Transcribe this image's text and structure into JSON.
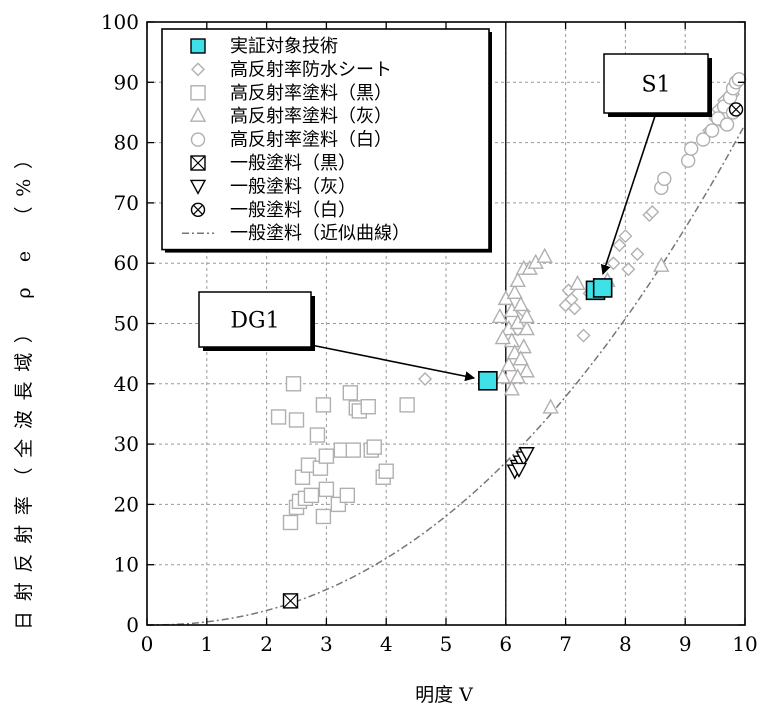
{
  "chart_data": {
    "type": "scatter",
    "xlabel": "明度 V",
    "ylabel": "日射反射率（全波長域） ρ e （%）",
    "xlim": [
      0,
      10
    ],
    "ylim": [
      0,
      100
    ],
    "x_ticks": [
      "0",
      "1",
      "2",
      "3",
      "4",
      "5",
      "6",
      "7",
      "8",
      "9",
      "10"
    ],
    "y_ticks": [
      "0",
      "10",
      "20",
      "30",
      "40",
      "50",
      "60",
      "70",
      "80",
      "90",
      "100"
    ],
    "grid": true,
    "legend_position": "top-left",
    "reference_line_x": 6,
    "series": [
      {
        "name": "実証対象技術",
        "marker": "square-filled",
        "color": "#40e0e8",
        "points": [
          [
            5.7,
            40.5
          ],
          [
            7.5,
            55.5
          ],
          [
            7.62,
            55.9
          ]
        ]
      },
      {
        "name": "高反射率防水シート",
        "marker": "diamond",
        "color": "#b0b0b0",
        "points": [
          [
            4.65,
            40.8
          ],
          [
            6.2,
            49
          ],
          [
            6.3,
            52
          ],
          [
            7.0,
            53
          ],
          [
            7.05,
            55.5
          ],
          [
            7.1,
            54
          ],
          [
            7.15,
            52.5
          ],
          [
            7.3,
            48
          ],
          [
            7.4,
            55
          ],
          [
            7.8,
            60
          ],
          [
            7.9,
            63
          ],
          [
            8.0,
            64.5
          ],
          [
            8.05,
            59
          ],
          [
            8.2,
            61.5
          ],
          [
            8.4,
            68
          ],
          [
            8.45,
            68.5
          ],
          [
            9.4,
            82
          ],
          [
            9.5,
            84
          ],
          [
            9.55,
            85.5
          ],
          [
            9.6,
            83.5
          ],
          [
            9.65,
            87
          ],
          [
            9.7,
            86
          ],
          [
            9.8,
            88
          ]
        ]
      },
      {
        "name": "高反射率塗料（黒）",
        "marker": "square",
        "color": "#b0b0b0",
        "points": [
          [
            2.2,
            34.5
          ],
          [
            2.45,
            40
          ],
          [
            2.5,
            34
          ],
          [
            2.4,
            17
          ],
          [
            2.5,
            19.5
          ],
          [
            2.55,
            20.5
          ],
          [
            2.6,
            24.5
          ],
          [
            2.65,
            21
          ],
          [
            2.7,
            26.5
          ],
          [
            2.75,
            21.5
          ],
          [
            2.85,
            31.5
          ],
          [
            2.9,
            26
          ],
          [
            2.95,
            18
          ],
          [
            3.0,
            28
          ],
          [
            3.0,
            22.5
          ],
          [
            2.95,
            36.5
          ],
          [
            3.2,
            20
          ],
          [
            3.25,
            29
          ],
          [
            3.35,
            21.5
          ],
          [
            3.4,
            38.5
          ],
          [
            3.45,
            29
          ],
          [
            3.5,
            36
          ],
          [
            3.55,
            35.5
          ],
          [
            3.7,
            36.2
          ],
          [
            3.75,
            29
          ],
          [
            3.8,
            29.5
          ],
          [
            3.95,
            24.5
          ],
          [
            4.0,
            25.5
          ],
          [
            4.35,
            36.5
          ]
        ]
      },
      {
        "name": "高反射率塗料（灰）",
        "marker": "triangle",
        "color": "#b0b0b0",
        "points": [
          [
            5.9,
            51
          ],
          [
            6.0,
            54
          ],
          [
            6.05,
            49
          ],
          [
            6.1,
            47
          ],
          [
            6.1,
            52
          ],
          [
            6.15,
            55
          ],
          [
            6.2,
            50
          ],
          [
            6.2,
            57
          ],
          [
            6.25,
            53
          ],
          [
            6.3,
            46
          ],
          [
            6.3,
            59
          ],
          [
            6.35,
            49
          ],
          [
            6.35,
            51
          ],
          [
            6.4,
            59
          ],
          [
            6.5,
            60
          ],
          [
            6.65,
            61
          ],
          [
            6.05,
            43
          ],
          [
            6.15,
            45
          ],
          [
            6.25,
            44
          ],
          [
            6.35,
            42
          ],
          [
            6.1,
            39
          ],
          [
            6.2,
            41
          ],
          [
            5.95,
            47.5
          ],
          [
            6.75,
            36
          ],
          [
            8.6,
            59.5
          ],
          [
            7.2,
            56.5
          ],
          [
            7.7,
            57
          ],
          [
            5.95,
            41
          ]
        ]
      },
      {
        "name": "高反射率塗料（白）",
        "marker": "circle",
        "color": "#b0b0b0",
        "points": [
          [
            8.6,
            72.5
          ],
          [
            8.65,
            74
          ],
          [
            9.05,
            77
          ],
          [
            9.1,
            79
          ],
          [
            9.3,
            80.5
          ],
          [
            9.45,
            82
          ],
          [
            9.55,
            84
          ],
          [
            9.65,
            86
          ],
          [
            9.75,
            87.5
          ],
          [
            9.8,
            89
          ],
          [
            9.85,
            90
          ],
          [
            9.9,
            90.5
          ],
          [
            9.7,
            83
          ],
          [
            9.8,
            85
          ]
        ]
      },
      {
        "name": "一般塗料（黒）",
        "marker": "square-cross",
        "color": "#000000",
        "points": [
          [
            2.4,
            4
          ]
        ]
      },
      {
        "name": "一般塗料（灰）",
        "marker": "triangle-down",
        "color": "#000000",
        "points": [
          [
            6.15,
            25.5
          ],
          [
            6.2,
            26.3
          ],
          [
            6.25,
            27
          ],
          [
            6.3,
            27.7
          ],
          [
            6.35,
            28.4
          ],
          [
            6.22,
            25.8
          ]
        ]
      },
      {
        "name": "一般塗料（白）",
        "marker": "circle-cross",
        "color": "#000000",
        "points": [
          [
            9.85,
            85.5
          ]
        ]
      },
      {
        "name": "一般塗料（近似曲線）",
        "marker": "dashdot-line",
        "color": "#777777",
        "curve_exponent": 2.2,
        "curve_points": [
          [
            0,
            0
          ],
          [
            1,
            0.4
          ],
          [
            2,
            2.5
          ],
          [
            3,
            5.5
          ],
          [
            4,
            10.5
          ],
          [
            5,
            18.5
          ],
          [
            6,
            29
          ],
          [
            7,
            42
          ],
          [
            8,
            57
          ],
          [
            9,
            70.5
          ],
          [
            10,
            83
          ]
        ]
      }
    ],
    "annotations": [
      {
        "label": "S1",
        "target": [
          7.55,
          56
        ]
      },
      {
        "label": "DG1",
        "target": [
          5.7,
          40.5
        ]
      }
    ]
  }
}
